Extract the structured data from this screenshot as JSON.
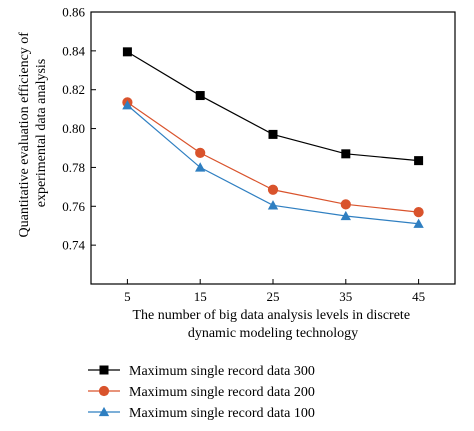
{
  "chart_data": {
    "type": "line",
    "title": "",
    "xlabel": [
      "The number of big data analysis levels in discrete",
      "dynamic modeling technology"
    ],
    "ylabel": [
      "Quantitative evaluation efficiency of",
      "experimental data analysis"
    ],
    "x": [
      5,
      15,
      25,
      35,
      45
    ],
    "xlim": [
      0,
      50
    ],
    "ylim": [
      0.72,
      0.86
    ],
    "yticks": [
      0.74,
      0.76,
      0.78,
      0.8,
      0.82,
      0.84,
      0.86
    ],
    "ytick_labels": [
      "0.74",
      "0.76",
      "0.78",
      "0.80",
      "0.82",
      "0.84",
      "0.86"
    ],
    "xtick_labels": [
      "5",
      "15",
      "25",
      "35",
      "45"
    ],
    "grid": false,
    "legend_position": "bottom",
    "series": [
      {
        "name": "Maximum single record data 300",
        "values": [
          0.8395,
          0.817,
          0.797,
          0.787,
          0.7835
        ],
        "color": "#000000",
        "marker": "square"
      },
      {
        "name": "Maximum single record data 200",
        "values": [
          0.8135,
          0.7875,
          0.7685,
          0.761,
          0.757
        ],
        "color": "#d9532c",
        "marker": "circle"
      },
      {
        "name": "Maximum single record data 100",
        "values": [
          0.812,
          0.78,
          0.7605,
          0.755,
          0.751
        ],
        "color": "#2f7fc1",
        "marker": "triangle"
      }
    ]
  }
}
